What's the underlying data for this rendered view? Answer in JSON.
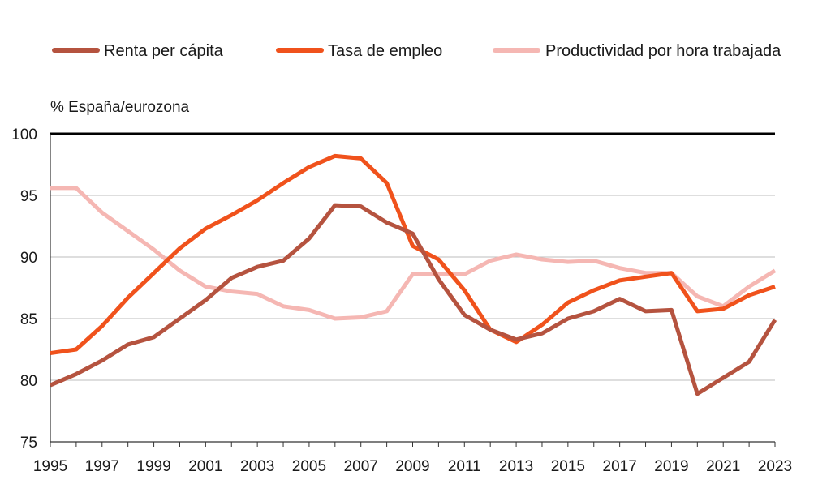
{
  "chart_data": {
    "type": "line",
    "title": "",
    "xlabel": "",
    "ylabel": "% España/eurozona",
    "ylim": [
      75,
      100
    ],
    "xlim": [
      1995,
      2023
    ],
    "grid": true,
    "legend_position": "top",
    "x": [
      1995,
      1996,
      1997,
      1998,
      1999,
      2000,
      2001,
      2002,
      2003,
      2004,
      2005,
      2006,
      2007,
      2008,
      2009,
      2010,
      2011,
      2012,
      2013,
      2014,
      2015,
      2016,
      2017,
      2018,
      2019,
      2020,
      2021,
      2022,
      2023
    ],
    "x_tick_labels": [
      "1995",
      "1997",
      "1999",
      "2001",
      "2003",
      "2005",
      "2007",
      "2009",
      "2011",
      "2013",
      "2015",
      "2017",
      "2019",
      "2021",
      "2023"
    ],
    "y_tick_labels": [
      "100",
      "95",
      "90",
      "85",
      "80",
      "75"
    ],
    "series": [
      {
        "name": "Renta per cápita",
        "color": "#b5533f",
        "values": [
          79.6,
          80.5,
          81.6,
          82.9,
          83.5,
          85.0,
          86.5,
          88.3,
          89.2,
          89.7,
          91.5,
          94.2,
          94.1,
          92.8,
          91.9,
          88.2,
          85.3,
          84.1,
          83.3,
          83.8,
          85.0,
          85.6,
          86.6,
          85.6,
          85.7,
          78.9,
          80.2,
          81.5,
          84.9
        ]
      },
      {
        "name": "Tasa de empleo",
        "color": "#f0521c",
        "values": [
          82.2,
          82.5,
          84.4,
          86.7,
          88.7,
          90.7,
          92.3,
          93.4,
          94.6,
          96.0,
          97.3,
          98.2,
          98.0,
          96.0,
          90.9,
          89.8,
          87.3,
          84.1,
          83.1,
          84.5,
          86.3,
          87.3,
          88.1,
          88.4,
          88.7,
          85.6,
          85.8,
          86.9,
          87.6
        ]
      },
      {
        "name": "Productividad por hora trabajada",
        "color": "#f5b7b3",
        "values": [
          95.6,
          95.6,
          93.6,
          92.1,
          90.6,
          88.9,
          87.6,
          87.2,
          87.0,
          86.0,
          85.7,
          85.0,
          85.1,
          85.6,
          88.6,
          88.6,
          88.6,
          89.7,
          90.2,
          89.8,
          89.6,
          89.7,
          89.1,
          88.7,
          88.7,
          86.8,
          86.0,
          87.6,
          88.9
        ]
      }
    ]
  }
}
